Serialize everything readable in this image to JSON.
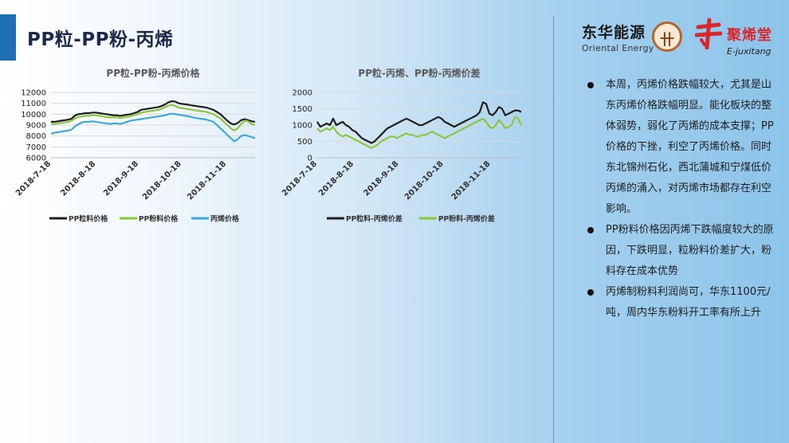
{
  "page": {
    "title": "PP粒-PP粉-丙烯",
    "colors": {
      "accent": "#1f6fb5",
      "pp_granule": "#1f1f1f",
      "pp_powder": "#8cc63f",
      "propylene": "#3fa9d9"
    }
  },
  "logos": {
    "dh_cn": "东华能源",
    "dh_en": "Oriental Energy",
    "jx_cn": "聚烯堂",
    "jx_en": "E-juxitang"
  },
  "bullets": [
    "本周，丙烯价格跌幅较大，尤其是山东丙烯价格跌幅明显。能化板块的整体弱势，弱化了丙烯的成本支撑；PP价格的下挫，利空了丙烯价格。同时东北锦州石化，西北蒲城和宁煤低价丙烯的涌入，对丙烯市场都存在利空影响。",
    "PP粉料价格因丙烯下跌幅度较大的原因，下跌明显，粒粉料价差扩大，粉料存在成本优势",
    "丙烯制粉料利润尚可，华东1100元/吨，周内华东粉料开工率有所上升"
  ],
  "chart_data": [
    {
      "type": "line",
      "title": "PP粒-PP粉-丙烯价格",
      "ylim": [
        6000,
        12000
      ],
      "yticks": [
        6000,
        7000,
        8000,
        9000,
        10000,
        11000,
        12000
      ],
      "xtick_labels": [
        "2018-7-18",
        "2018-8-18",
        "2018-9-18",
        "2018-10-18",
        "2018-11-18"
      ],
      "grid": true,
      "legend": "bottom",
      "series": [
        {
          "name": "PP粒料价格",
          "color": "#1f1f1f",
          "values": [
            9300,
            9300,
            9350,
            9400,
            9450,
            9500,
            9600,
            9900,
            10000,
            10050,
            10100,
            10100,
            10150,
            10150,
            10100,
            10050,
            10000,
            9950,
            9900,
            9900,
            9850,
            9900,
            9950,
            10000,
            10100,
            10200,
            10400,
            10450,
            10500,
            10550,
            10600,
            10650,
            10750,
            10900,
            11100,
            11200,
            11150,
            11000,
            10950,
            10900,
            10850,
            10800,
            10750,
            10700,
            10650,
            10600,
            10500,
            10400,
            10200,
            10000,
            9700,
            9400,
            9150,
            9050,
            9200,
            9450,
            9550,
            9450,
            9350,
            9300
          ]
        },
        {
          "name": "PP粉料价格",
          "color": "#8cc63f",
          "values": [
            9100,
            9100,
            9150,
            9200,
            9250,
            9300,
            9400,
            9650,
            9750,
            9800,
            9850,
            9850,
            9900,
            9900,
            9850,
            9800,
            9750,
            9700,
            9700,
            9700,
            9650,
            9700,
            9750,
            9800,
            9900,
            10000,
            10150,
            10200,
            10250,
            10300,
            10350,
            10400,
            10500,
            10650,
            10800,
            10850,
            10750,
            10600,
            10550,
            10500,
            10450,
            10400,
            10350,
            10300,
            10250,
            10200,
            10100,
            10000,
            9800,
            9600,
            9300,
            9000,
            8700,
            8500,
            8700,
            9100,
            9400,
            9350,
            9100,
            9000
          ]
        },
        {
          "name": "丙烯价格",
          "color": "#3fa9d9",
          "values": [
            8200,
            8300,
            8350,
            8400,
            8450,
            8500,
            8600,
            8900,
            9100,
            9250,
            9300,
            9300,
            9350,
            9300,
            9250,
            9200,
            9150,
            9100,
            9150,
            9150,
            9100,
            9200,
            9300,
            9400,
            9450,
            9500,
            9550,
            9600,
            9650,
            9700,
            9750,
            9800,
            9850,
            9900,
            10000,
            10050,
            10000,
            9950,
            9900,
            9850,
            9800,
            9700,
            9650,
            9600,
            9550,
            9500,
            9400,
            9300,
            9000,
            8700,
            8400,
            8100,
            7800,
            7500,
            7700,
            8000,
            8100,
            8000,
            7900,
            7800
          ]
        }
      ]
    },
    {
      "type": "line",
      "title": "PP粒-丙烯、PP粉-丙烯价差",
      "ylim": [
        0,
        2000
      ],
      "yticks": [
        0,
        500,
        1000,
        1500,
        2000
      ],
      "xtick_labels": [
        "2018-7-18",
        "2018-8-18",
        "2018-9-18",
        "2018-10-18",
        "2018-11-18"
      ],
      "grid": true,
      "legend": "bottom",
      "series": [
        {
          "name": "PP粒料-丙烯价差",
          "color": "#1f1f1f",
          "values": [
            1100,
            950,
            1000,
            1050,
            1000,
            1200,
            1000,
            1050,
            1100,
            1000,
            950,
            850,
            800,
            700,
            600,
            550,
            500,
            450,
            500,
            600,
            700,
            800,
            900,
            950,
            1000,
            1050,
            1100,
            1150,
            1200,
            1150,
            1100,
            1050,
            1000,
            1000,
            1050,
            1100,
            1150,
            1200,
            1250,
            1200,
            1100,
            1050,
            1000,
            950,
            1000,
            1050,
            1100,
            1150,
            1200,
            1250,
            1300,
            1400,
            1700,
            1650,
            1350,
            1300,
            1400,
            1550,
            1500,
            1300,
            1350,
            1400,
            1450,
            1450,
            1400
          ]
        },
        {
          "name": "PP粉料-丙烯价差",
          "color": "#8cc63f",
          "values": [
            900,
            800,
            850,
            900,
            850,
            950,
            800,
            700,
            650,
            700,
            650,
            600,
            550,
            500,
            450,
            400,
            350,
            300,
            350,
            400,
            500,
            550,
            600,
            650,
            650,
            600,
            650,
            700,
            750,
            700,
            700,
            650,
            650,
            700,
            700,
            750,
            800,
            750,
            700,
            650,
            600,
            650,
            700,
            750,
            800,
            850,
            900,
            950,
            1000,
            1050,
            1100,
            1150,
            1200,
            1100,
            950,
            900,
            1000,
            1150,
            1050,
            900,
            950,
            1000,
            1250,
            1200,
            1000
          ]
        }
      ]
    }
  ]
}
